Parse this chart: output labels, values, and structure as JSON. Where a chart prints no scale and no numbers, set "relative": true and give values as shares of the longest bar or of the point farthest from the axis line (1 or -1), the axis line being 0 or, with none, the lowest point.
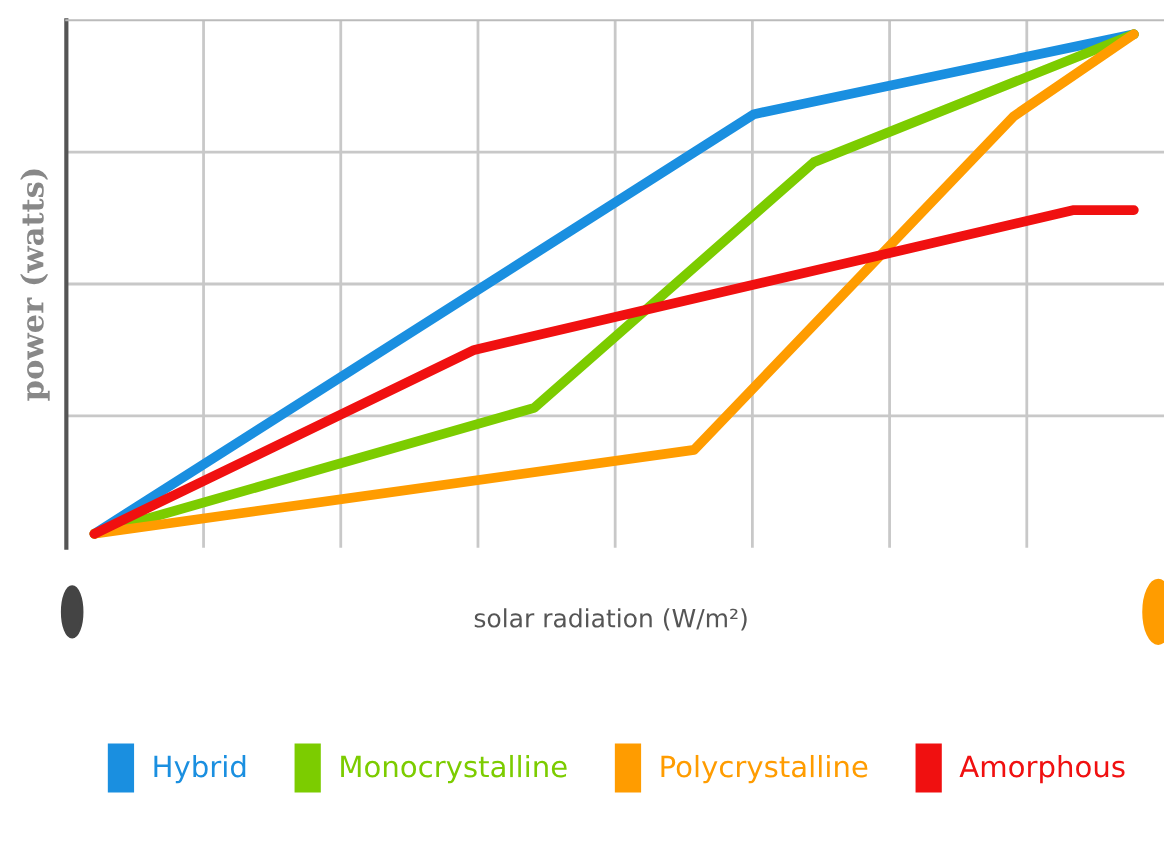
{
  "chart_data": {
    "type": "line",
    "relative": true,
    "xlabel": "solar radiation (W/m²)",
    "ylabel": "power (watts)",
    "grid": true,
    "tick_labels": false,
    "legend": "bottom",
    "marker": "none",
    "line_style": "solid",
    "categories": [
      null,
      null,
      null,
      null,
      null,
      null,
      null,
      null,
      null,
      null,
      null,
      null,
      null,
      null,
      null,
      null,
      null,
      null,
      null,
      null,
      null,
      null,
      null,
      null,
      null,
      null,
      null,
      null,
      null,
      null,
      null,
      null,
      null,
      null,
      null,
      null,
      null,
      null,
      null,
      null,
      null,
      null,
      null,
      null,
      null,
      null,
      null,
      null,
      null,
      null,
      null,
      null,
      null
    ],
    "series": [
      {
        "name": "Hybrid",
        "color": "#1a8fe0",
        "values": [
          0,
          null,
          null,
          null,
          null,
          null,
          null,
          null,
          null,
          null,
          null,
          null,
          null,
          null,
          null,
          null,
          null,
          null,
          null,
          null,
          null,
          null,
          null,
          null,
          null,
          null,
          null,
          null,
          null,
          null,
          null,
          null,
          null,
          0.84,
          null,
          null,
          null,
          null,
          null,
          null,
          null,
          null,
          null,
          null,
          null,
          null,
          null,
          null,
          null,
          null,
          null,
          null,
          1
        ]
      },
      {
        "name": "Monocrystalline",
        "color": "#7ccc00",
        "values": [
          0,
          null,
          null,
          null,
          null,
          null,
          null,
          null,
          null,
          null,
          null,
          null,
          null,
          null,
          null,
          null,
          null,
          null,
          null,
          null,
          null,
          null,
          0.252,
          null,
          null,
          null,
          null,
          null,
          null,
          null,
          null,
          null,
          null,
          null,
          null,
          null,
          0.744,
          null,
          null,
          null,
          null,
          null,
          null,
          null,
          null,
          null,
          null,
          null,
          null,
          null,
          null,
          null,
          1
        ]
      },
      {
        "name": "Polycrystalline",
        "color": "#ff9c00",
        "values": [
          0,
          null,
          null,
          null,
          null,
          null,
          null,
          null,
          null,
          null,
          null,
          null,
          null,
          null,
          null,
          null,
          null,
          null,
          null,
          null,
          null,
          null,
          null,
          null,
          null,
          null,
          null,
          null,
          null,
          null,
          0.168,
          null,
          null,
          null,
          null,
          null,
          null,
          null,
          null,
          null,
          null,
          null,
          null,
          null,
          null,
          null,
          0.836,
          null,
          null,
          null,
          null,
          null,
          1
        ]
      },
      {
        "name": "Amorphous",
        "color": "#f01010",
        "values": [
          0,
          null,
          null,
          null,
          null,
          null,
          null,
          null,
          null,
          null,
          null,
          null,
          null,
          null,
          null,
          null,
          null,
          null,
          null,
          0.368,
          null,
          null,
          null,
          null,
          null,
          null,
          null,
          null,
          null,
          null,
          null,
          null,
          null,
          null,
          null,
          null,
          null,
          null,
          null,
          null,
          null,
          null,
          null,
          null,
          null,
          null,
          null,
          null,
          null,
          0.648,
          null,
          null,
          0.648
        ]
      }
    ]
  }
}
